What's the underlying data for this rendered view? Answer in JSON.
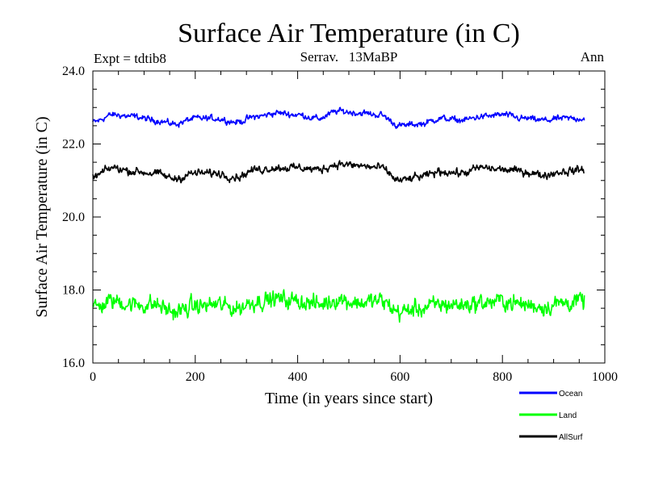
{
  "chart_data": {
    "type": "line",
    "title": "Surface Air Temperature (in C)",
    "subtitle_left": "Expt = tdtib8",
    "subtitle_center": "Serrav.   13MaBP",
    "subtitle_right": "Ann",
    "xlabel": "Time (in years since start)",
    "ylabel": "Surface Air Temperature (in C)",
    "xlim": [
      0,
      1000
    ],
    "ylim": [
      16,
      24
    ],
    "x_ticks": [
      0,
      200,
      400,
      600,
      800,
      1000
    ],
    "x_tick_labels": [
      "0",
      "200",
      "400",
      "600",
      "800",
      "1000"
    ],
    "y_ticks": [
      16,
      18,
      20,
      22,
      24
    ],
    "y_tick_labels": [
      "16.0",
      "18.0",
      "20.0",
      "22.0",
      "24.0"
    ],
    "x_range": [
      0,
      960
    ],
    "series": [
      {
        "name": "Ocean",
        "color": "#0000ff",
        "key_x": [
          0,
          40,
          80,
          120,
          160,
          200,
          240,
          280,
          320,
          360,
          400,
          440,
          480,
          520,
          560,
          600,
          640,
          680,
          720,
          760,
          800,
          840,
          880,
          920,
          960
        ],
        "key_y": [
          22.6,
          22.8,
          22.75,
          22.65,
          22.55,
          22.7,
          22.7,
          22.6,
          22.75,
          22.85,
          22.8,
          22.7,
          22.9,
          22.85,
          22.8,
          22.5,
          22.55,
          22.7,
          22.65,
          22.75,
          22.8,
          22.7,
          22.65,
          22.7,
          22.7
        ],
        "noise": 0.08
      },
      {
        "name": "Land",
        "color": "#00ff00",
        "key_x": [
          0,
          40,
          80,
          120,
          160,
          200,
          240,
          280,
          320,
          360,
          400,
          440,
          480,
          520,
          560,
          600,
          640,
          680,
          720,
          760,
          800,
          840,
          880,
          920,
          960
        ],
        "key_y": [
          17.5,
          17.7,
          17.6,
          17.6,
          17.4,
          17.55,
          17.6,
          17.5,
          17.7,
          17.75,
          17.7,
          17.6,
          17.75,
          17.65,
          17.7,
          17.4,
          17.5,
          17.6,
          17.6,
          17.65,
          17.7,
          17.6,
          17.55,
          17.65,
          17.7
        ],
        "noise": 0.22
      },
      {
        "name": "AllSurf",
        "color": "#000000",
        "key_x": [
          0,
          40,
          80,
          120,
          160,
          200,
          240,
          280,
          320,
          360,
          400,
          440,
          480,
          520,
          560,
          600,
          640,
          680,
          720,
          760,
          800,
          840,
          880,
          920,
          960
        ],
        "key_y": [
          21.1,
          21.35,
          21.25,
          21.2,
          21.05,
          21.2,
          21.2,
          21.1,
          21.3,
          21.35,
          21.35,
          21.3,
          21.45,
          21.4,
          21.35,
          21.0,
          21.1,
          21.25,
          21.2,
          21.35,
          21.3,
          21.25,
          21.15,
          21.25,
          21.3
        ],
        "noise": 0.1
      }
    ],
    "legend_position": "below-right"
  }
}
